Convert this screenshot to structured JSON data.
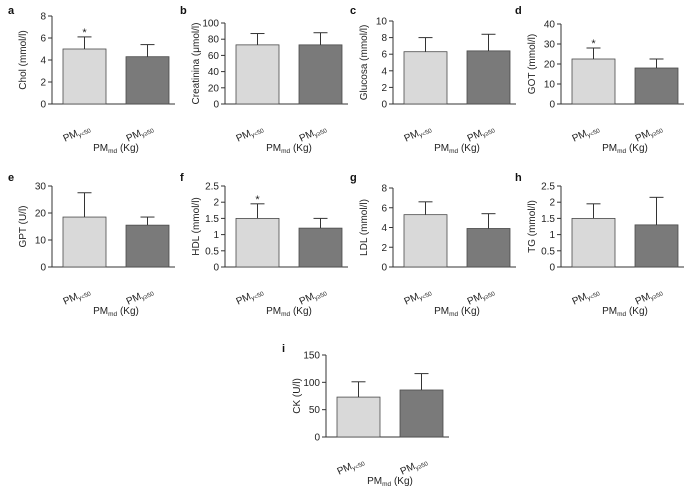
{
  "figure": {
    "colors": {
      "bar1": "#d9d9d9",
      "bar2": "#7a7a7a",
      "stroke": "#4a4a4a",
      "axis": "#333333"
    },
    "xlabel": {
      "main": "PM",
      "sub": "md",
      "suffix": " (Kg)"
    }
  },
  "chart_data": [
    {
      "id": "a",
      "type": "bar",
      "ylabel": "Chol (mmol/l)",
      "ylim": [
        0,
        8
      ],
      "yticks": [
        0,
        2,
        4,
        6,
        8
      ],
      "categories": [
        {
          "main": "PM",
          "sub": "y<50"
        },
        {
          "main": "PM",
          "sub": "y≥50"
        }
      ],
      "values": [
        5.0,
        4.3
      ],
      "errors": [
        1.1,
        1.1
      ],
      "significance": [
        "*",
        ""
      ]
    },
    {
      "id": "b",
      "type": "bar",
      "ylabel": "Creatinina (μmol/l)",
      "ylim": [
        0,
        100
      ],
      "yticks": [
        0,
        20,
        40,
        60,
        80,
        100
      ],
      "categories": [
        {
          "main": "PM",
          "sub": "y<50"
        },
        {
          "main": "PM",
          "sub": "y≥50"
        }
      ],
      "values": [
        73,
        73
      ],
      "errors": [
        14,
        15
      ],
      "significance": [
        "",
        ""
      ]
    },
    {
      "id": "c",
      "type": "bar",
      "ylabel": "Glucosa (mmol/l)",
      "ylim": [
        0,
        10
      ],
      "yticks": [
        0,
        2,
        4,
        6,
        8,
        10
      ],
      "categories": [
        {
          "main": "PM",
          "sub": "y<50"
        },
        {
          "main": "PM",
          "sub": "y≥50"
        }
      ],
      "values": [
        6.3,
        6.4
      ],
      "errors": [
        1.7,
        2.0
      ],
      "significance": [
        "",
        ""
      ]
    },
    {
      "id": "d",
      "type": "bar",
      "ylabel": "GOT (mmol/l)",
      "ylim": [
        0,
        40
      ],
      "yticks": [
        0,
        10,
        20,
        30,
        40
      ],
      "categories": [
        {
          "main": "PM",
          "sub": "y<50"
        },
        {
          "main": "PM",
          "sub": "y≥50"
        }
      ],
      "values": [
        22.5,
        18
      ],
      "errors": [
        5.5,
        4.5
      ],
      "significance": [
        "*",
        ""
      ]
    },
    {
      "id": "e",
      "type": "bar",
      "ylabel": "GPT (U/l)",
      "ylim": [
        0,
        30
      ],
      "yticks": [
        0,
        10,
        20,
        30
      ],
      "categories": [
        {
          "main": "PM",
          "sub": "y<50"
        },
        {
          "main": "PM",
          "sub": "y≥50"
        }
      ],
      "values": [
        18.5,
        15.5
      ],
      "errors": [
        9,
        3
      ],
      "significance": [
        "",
        ""
      ]
    },
    {
      "id": "f",
      "type": "bar",
      "ylabel": "HDL (mmol/l)",
      "ylim": [
        0,
        2.5
      ],
      "yticks": [
        0,
        0.5,
        1.0,
        1.5,
        2.0,
        2.5
      ],
      "categories": [
        {
          "main": "PM",
          "sub": "y<50"
        },
        {
          "main": "PM",
          "sub": "y≥50"
        }
      ],
      "values": [
        1.5,
        1.2
      ],
      "errors": [
        0.45,
        0.3
      ],
      "significance": [
        "*",
        ""
      ]
    },
    {
      "id": "g",
      "type": "bar",
      "ylabel": "LDL (mmol/l)",
      "ylim": [
        0,
        8
      ],
      "yticks": [
        0,
        2,
        4,
        6,
        8
      ],
      "categories": [
        {
          "main": "PM",
          "sub": "y<50"
        },
        {
          "main": "PM",
          "sub": "y≥50"
        }
      ],
      "values": [
        5.3,
        3.9
      ],
      "errors": [
        1.3,
        1.5
      ],
      "significance": [
        "",
        ""
      ]
    },
    {
      "id": "h",
      "type": "bar",
      "ylabel": "TG (mmol/l)",
      "ylim": [
        0,
        2.5
      ],
      "yticks": [
        0,
        0.5,
        1.0,
        1.5,
        2.0,
        2.5
      ],
      "categories": [
        {
          "main": "PM",
          "sub": "y<50"
        },
        {
          "main": "PM",
          "sub": "y≥50"
        }
      ],
      "values": [
        1.5,
        1.3
      ],
      "errors": [
        0.45,
        0.85
      ],
      "significance": [
        "",
        ""
      ]
    },
    {
      "id": "i",
      "type": "bar",
      "ylabel": "CK (U/l)",
      "ylim": [
        0,
        150
      ],
      "yticks": [
        0,
        50,
        100,
        150
      ],
      "categories": [
        {
          "main": "PM",
          "sub": "y<50"
        },
        {
          "main": "PM",
          "sub": "y≥50"
        }
      ],
      "values": [
        73,
        86
      ],
      "errors": [
        28,
        30
      ],
      "significance": [
        "",
        ""
      ]
    }
  ]
}
